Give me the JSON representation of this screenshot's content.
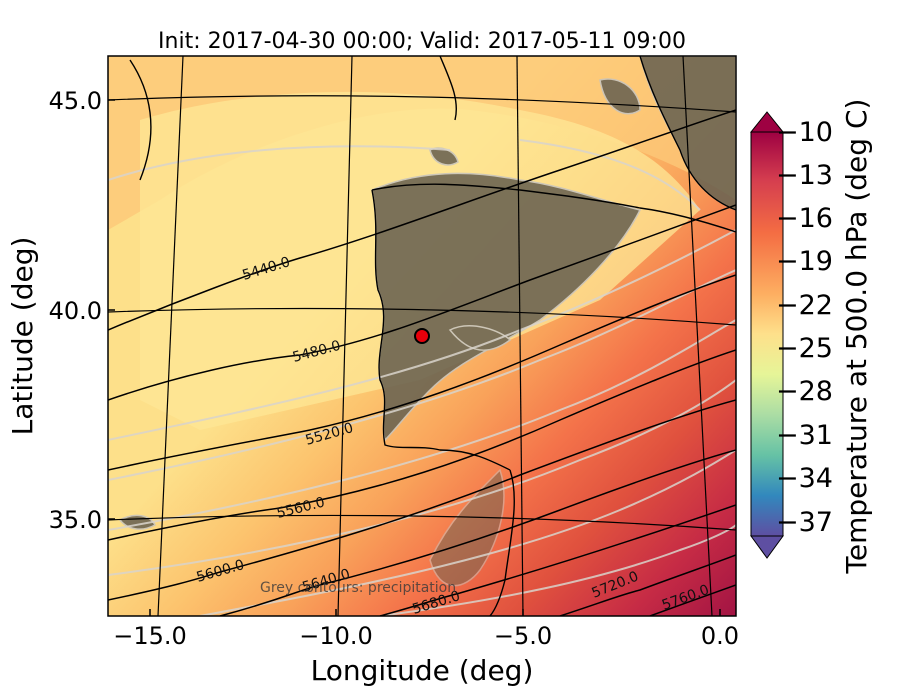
{
  "title": "Init: 2017-04-30 00:00; Valid: 2017-05-11 09:00",
  "xlabel": "Longitude (deg)",
  "ylabel": "Latitude (deg)",
  "colorbar": {
    "label": "Temperature at 500.0 hPa (deg C)",
    "ticks": [
      "−10",
      "−13",
      "−16",
      "−19",
      "−22",
      "−25",
      "−28",
      "−31",
      "−34",
      "−37"
    ],
    "colormap": "Spectral_r",
    "range": [
      -38,
      -10
    ]
  },
  "chart_data": {
    "type": "map",
    "projection": "lambert-conformal",
    "xlim": [
      -15.9,
      0.0
    ],
    "ylim": [
      32.6,
      46.1
    ],
    "x_ticks": [
      "−15.0",
      "−10.0",
      "−5.0",
      "0.0"
    ],
    "y_ticks": [
      "45.0",
      "40.0",
      "35.0"
    ],
    "fill_variable": "Temperature at 500.0 hPa (deg C)",
    "contour_labels": [
      "5440.0",
      "5480.0",
      "5520.0",
      "5560.0",
      "5600.0",
      "5640.0",
      "5680.0",
      "5720.0",
      "5760.0"
    ],
    "annotation": "Grey contours: precipitation",
    "marker": {
      "lon": -7.7,
      "lat": 39.3,
      "color": "#e8000b"
    }
  },
  "colors": {
    "warm_dark": "#a6173e",
    "warm_mid": "#e0513e",
    "warm_light": "#f9a25a",
    "pale": "#fbe394",
    "land_grey": "#6d6552",
    "marker": "#e8000b"
  }
}
